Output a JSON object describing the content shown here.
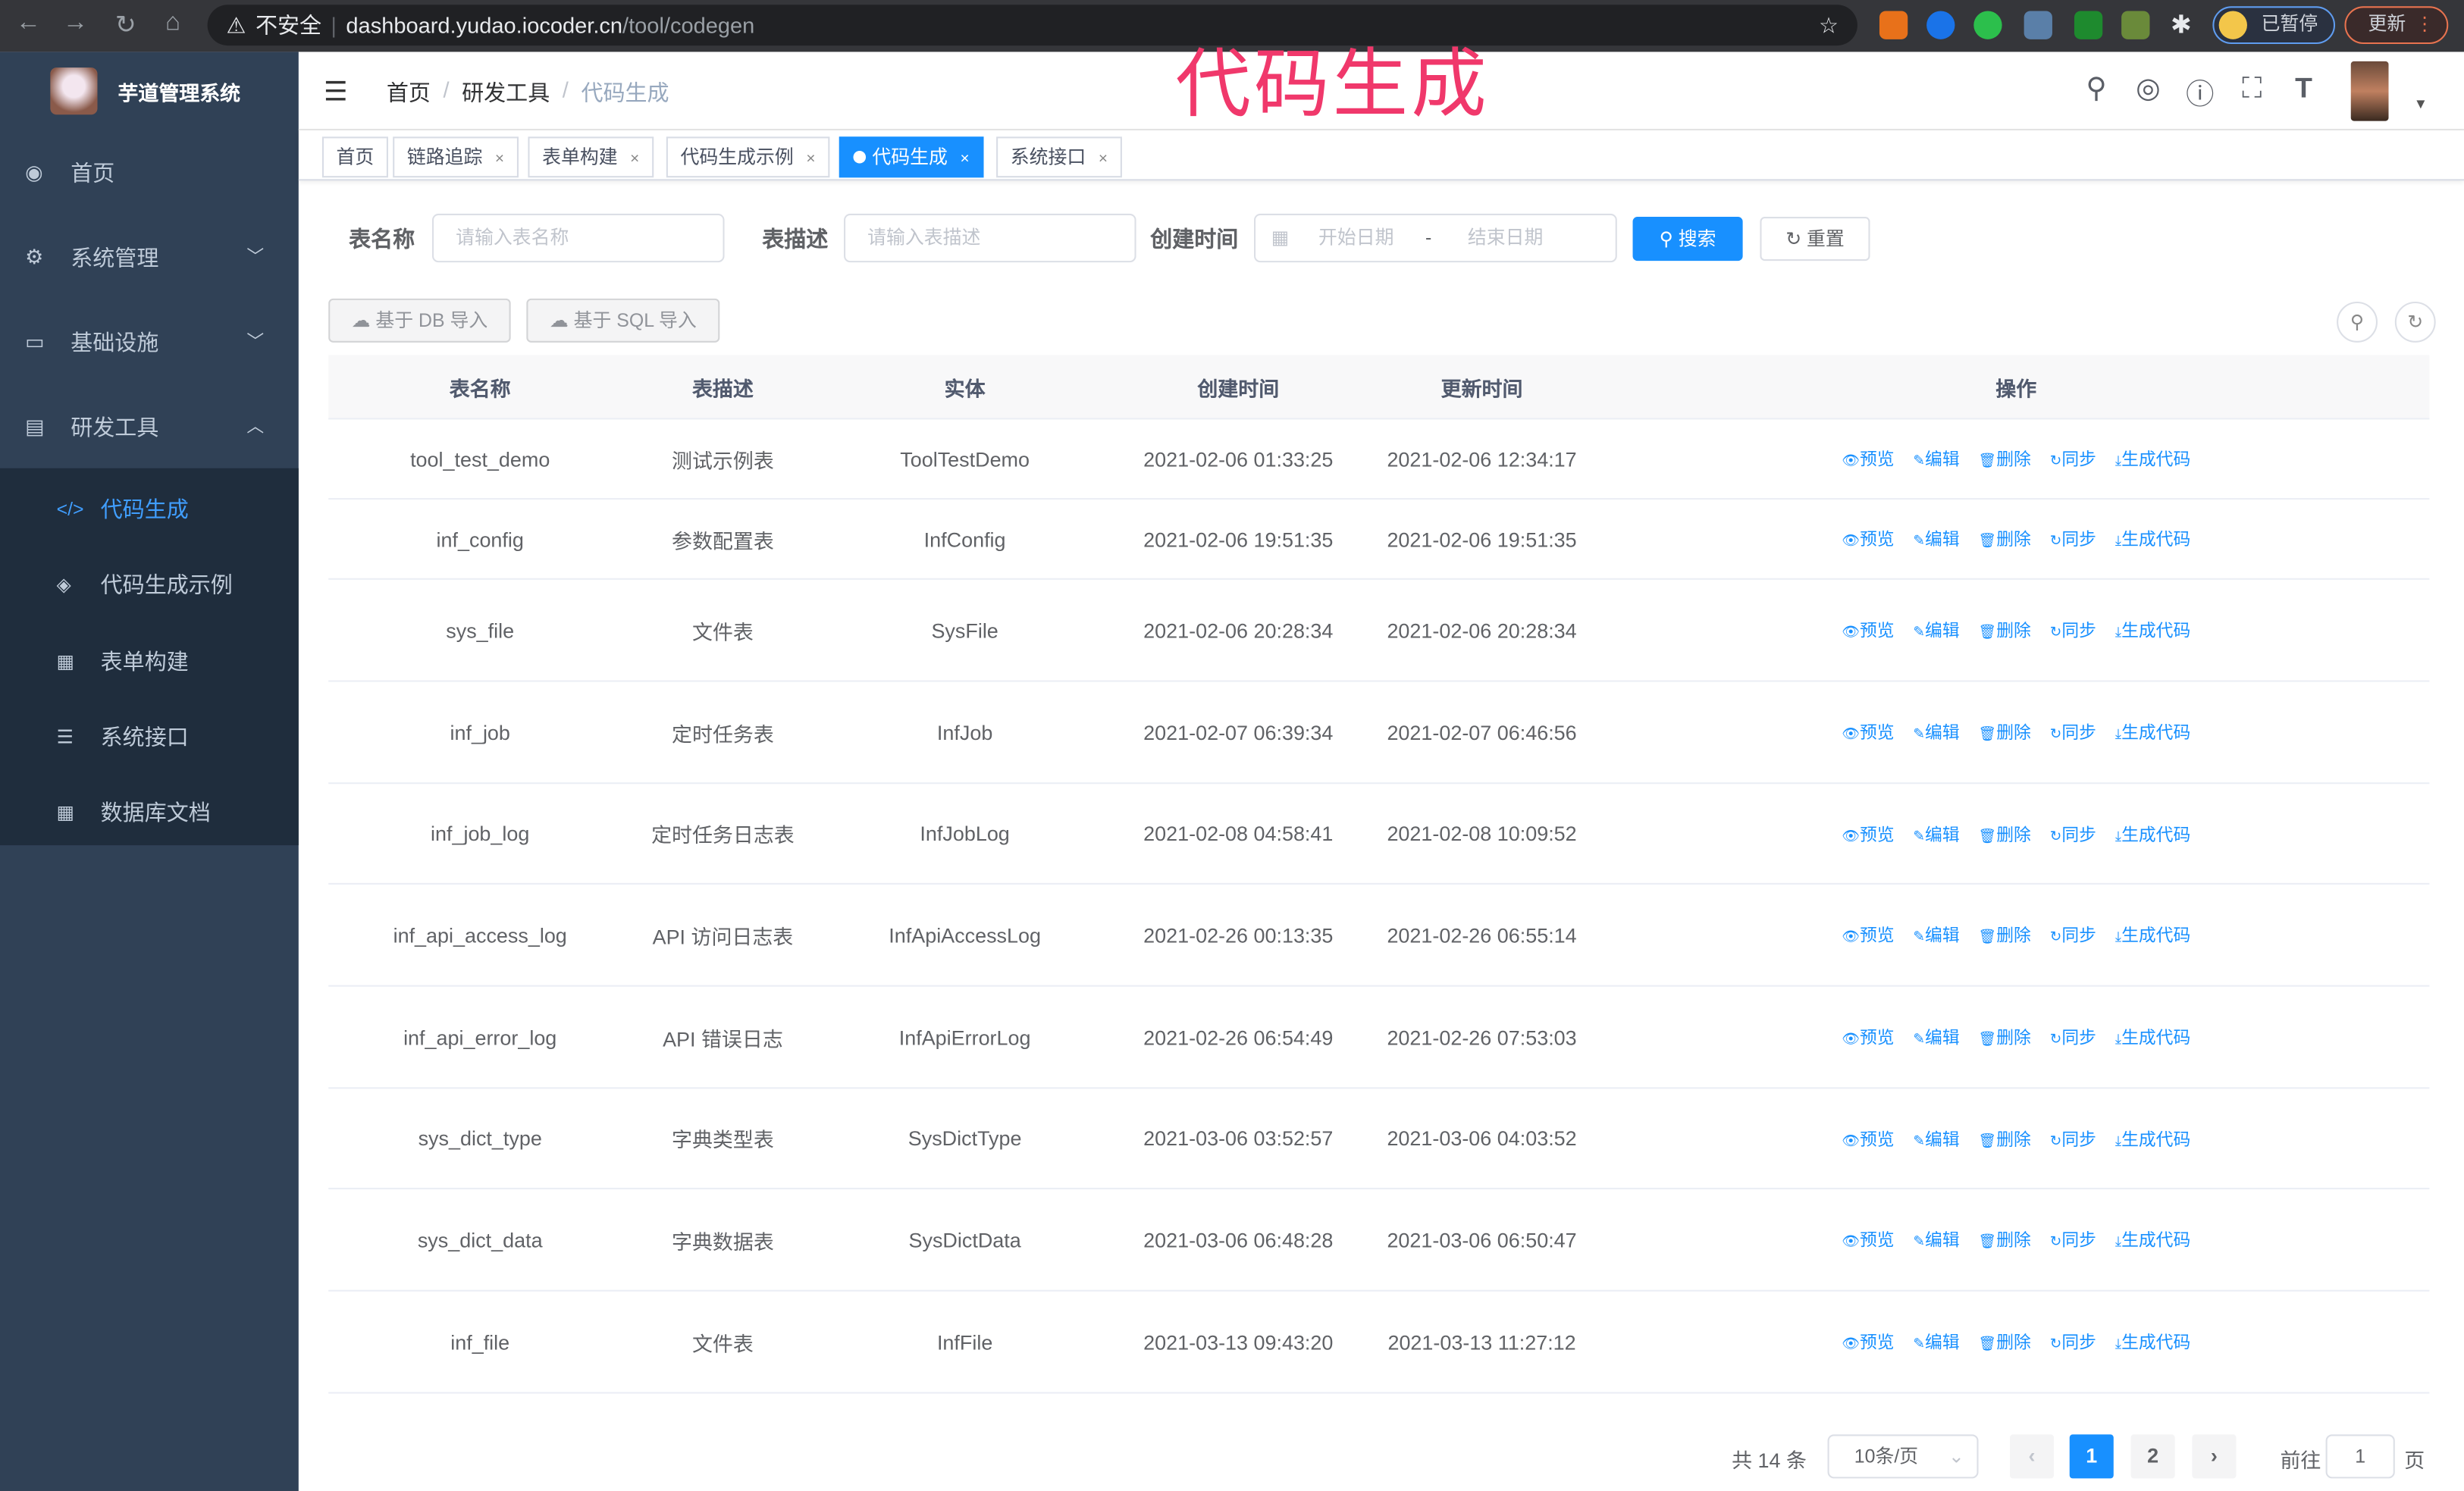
{
  "browser": {
    "security": "不安全",
    "url_host": "dashboard.yudao.iocoder.cn",
    "url_path": "/tool/codegen",
    "paused": "已暂停",
    "update": "更新"
  },
  "overlay_title": "代码生成",
  "sidebar": {
    "title": "芋道管理系统",
    "menu": [
      {
        "label": "首页",
        "icon": "dashboard-icon"
      },
      {
        "label": "系统管理",
        "icon": "gear-icon"
      },
      {
        "label": "基础设施",
        "icon": "monitor-icon"
      },
      {
        "label": "研发工具",
        "icon": "toolbox-icon"
      }
    ],
    "submenu": [
      {
        "label": "代码生成",
        "icon": "code-icon",
        "active": true
      },
      {
        "label": "代码生成示例",
        "icon": "shield-icon"
      },
      {
        "label": "表单构建",
        "icon": "form-icon"
      },
      {
        "label": "系统接口",
        "icon": "sliders-icon"
      },
      {
        "label": "数据库文档",
        "icon": "table-icon"
      }
    ]
  },
  "breadcrumb": [
    "首页",
    "研发工具",
    "代码生成"
  ],
  "tags": [
    {
      "label": "首页",
      "closable": false
    },
    {
      "label": "链路追踪",
      "closable": true
    },
    {
      "label": "表单构建",
      "closable": true
    },
    {
      "label": "代码生成示例",
      "closable": true
    },
    {
      "label": "代码生成",
      "closable": true,
      "active": true
    },
    {
      "label": "系统接口",
      "closable": true
    }
  ],
  "form": {
    "table_name_label": "表名称",
    "table_name_placeholder": "请输入表名称",
    "table_comment_label": "表描述",
    "table_comment_placeholder": "请输入表描述",
    "create_time_label": "创建时间",
    "start_placeholder": "开始日期",
    "range_sep": "-",
    "end_placeholder": "结束日期",
    "search": "搜索",
    "reset": "重置"
  },
  "toolbar": {
    "import_db": "基于 DB 导入",
    "import_sql": "基于 SQL 导入"
  },
  "table": {
    "headers": [
      "表名称",
      "表描述",
      "实体",
      "创建时间",
      "更新时间",
      "操作"
    ],
    "actions": [
      "预览",
      "编辑",
      "删除",
      "同步",
      "生成代码"
    ],
    "rows": [
      [
        "tool_test_demo",
        "测试示例表",
        "ToolTestDemo",
        "2021-02-06 01:33:25",
        "2021-02-06 12:34:17"
      ],
      [
        "inf_config",
        "参数配置表",
        "InfConfig",
        "2021-02-06 19:51:35",
        "2021-02-06 19:51:35"
      ],
      [
        "sys_file",
        "文件表",
        "SysFile",
        "2021-02-06 20:28:34",
        "2021-02-06 20:28:34"
      ],
      [
        "inf_job",
        "定时任务表",
        "InfJob",
        "2021-02-07 06:39:34",
        "2021-02-07 06:46:56"
      ],
      [
        "inf_job_log",
        "定时任务日志表",
        "InfJobLog",
        "2021-02-08 04:58:41",
        "2021-02-08 10:09:52"
      ],
      [
        "inf_api_access_log",
        "API 访问日志表",
        "InfApiAccessLog",
        "2021-02-26 00:13:35",
        "2021-02-26 06:55:14"
      ],
      [
        "inf_api_error_log",
        "API 错误日志",
        "InfApiErrorLog",
        "2021-02-26 06:54:49",
        "2021-02-26 07:53:03"
      ],
      [
        "sys_dict_type",
        "字典类型表",
        "SysDictType",
        "2021-03-06 03:52:57",
        "2021-03-06 04:03:52"
      ],
      [
        "sys_dict_data",
        "字典数据表",
        "SysDictData",
        "2021-03-06 06:48:28",
        "2021-03-06 06:50:47"
      ],
      [
        "inf_file",
        "文件表",
        "InfFile",
        "2021-03-13 09:43:20",
        "2021-03-13 11:27:12"
      ]
    ]
  },
  "pagination": {
    "total": "共 14 条",
    "page_size": "10条/页",
    "pages": [
      "1",
      "2"
    ],
    "current": "1",
    "goto_label": "前往",
    "goto_value": "1",
    "goto_suffix": "页"
  },
  "colors": {
    "primary": "#1890ff",
    "sidebar": "#304156",
    "submenu": "#1f2d3d",
    "overlay": "#f0386b"
  }
}
